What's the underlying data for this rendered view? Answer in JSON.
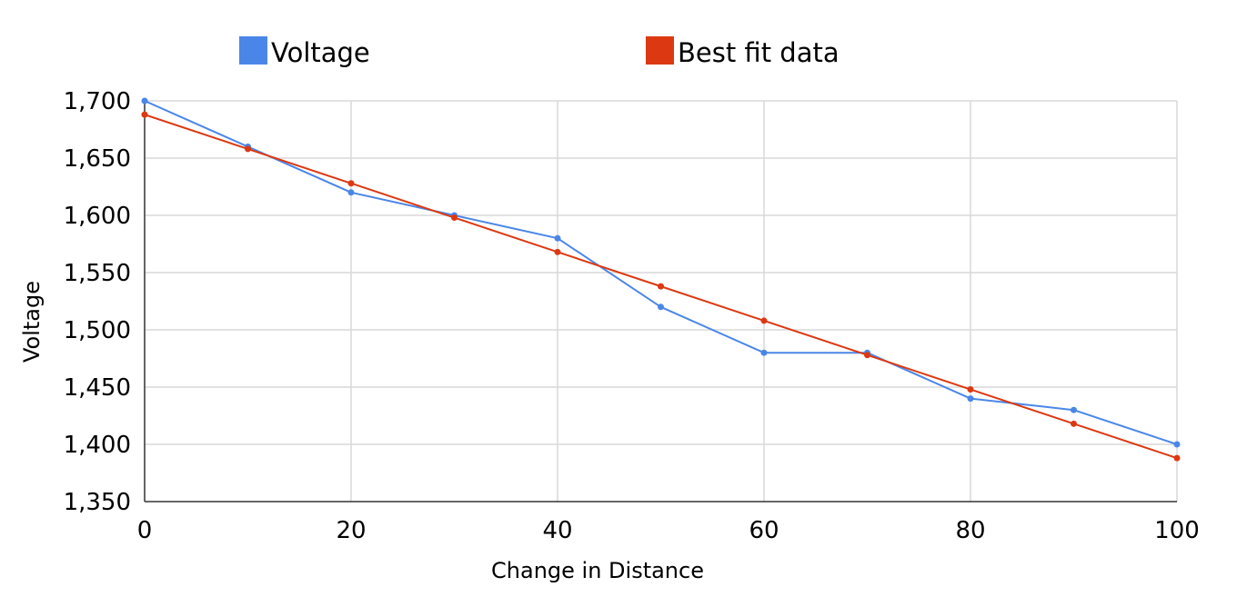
{
  "chart_data": {
    "type": "line",
    "title": "",
    "xlabel": "Change in Distance",
    "ylabel": "Voltage",
    "xlim": [
      0,
      100
    ],
    "ylim": [
      1350,
      1700
    ],
    "x_ticks": [
      0,
      20,
      40,
      60,
      80,
      100
    ],
    "y_ticks": [
      1350,
      1400,
      1450,
      1500,
      1550,
      1600,
      1650,
      1700
    ],
    "x_tick_labels": [
      "0",
      "20",
      "40",
      "60",
      "80",
      "100"
    ],
    "y_tick_labels": [
      "1,350",
      "1,400",
      "1,450",
      "1,500",
      "1,550",
      "1,600",
      "1,650",
      "1,700"
    ],
    "grid": true,
    "legend_position": "top",
    "x": [
      0,
      10,
      20,
      30,
      40,
      50,
      60,
      70,
      80,
      90,
      100
    ],
    "series": [
      {
        "name": "Voltage",
        "color": "#4a86e8",
        "values": [
          1700,
          1660,
          1620,
          1600,
          1580,
          1520,
          1480,
          1480,
          1440,
          1430,
          1400
        ]
      },
      {
        "name": "Best fit data",
        "color": "#dc3912",
        "values": [
          1688,
          1658,
          1628,
          1598,
          1568,
          1538,
          1508,
          1478,
          1448,
          1418,
          1388
        ]
      }
    ]
  }
}
